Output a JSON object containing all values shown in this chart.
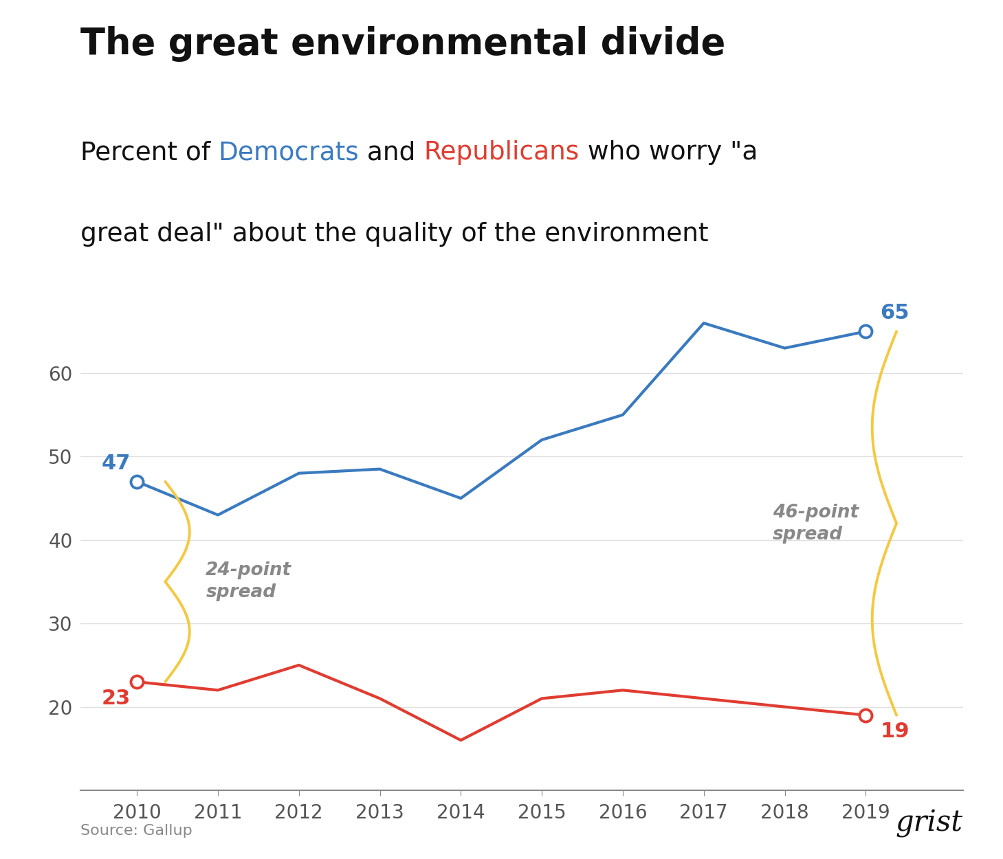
{
  "years": [
    2010,
    2011,
    2012,
    2013,
    2014,
    2015,
    2016,
    2017,
    2018,
    2019
  ],
  "democrats": [
    47,
    43,
    48,
    48.5,
    45,
    52,
    55,
    66,
    63,
    65
  ],
  "republicans": [
    23,
    22,
    25,
    21,
    16,
    21,
    22,
    21,
    20,
    19
  ],
  "dem_color": "#3a7abf",
  "rep_color": "#e03c31",
  "bracket_color": "#f5c842",
  "title": "The great environmental divide",
  "subtitle_line2": "great deal\" about the quality of the environment",
  "source_text": "Source: Gallup",
  "grist_text": "grist",
  "yticks": [
    20,
    30,
    40,
    50,
    60
  ],
  "ylim": [
    10,
    73
  ],
  "xlim": [
    2009.3,
    2020.2
  ],
  "background_color": "#ffffff",
  "grid_color": "#e0e0e0",
  "spread_2010_label": "24-point\nspread",
  "spread_2019_label": "46-point\nspread",
  "dem_start_val": "47",
  "rep_start_val": "23",
  "dem_end_val": "65",
  "rep_end_val": "19"
}
